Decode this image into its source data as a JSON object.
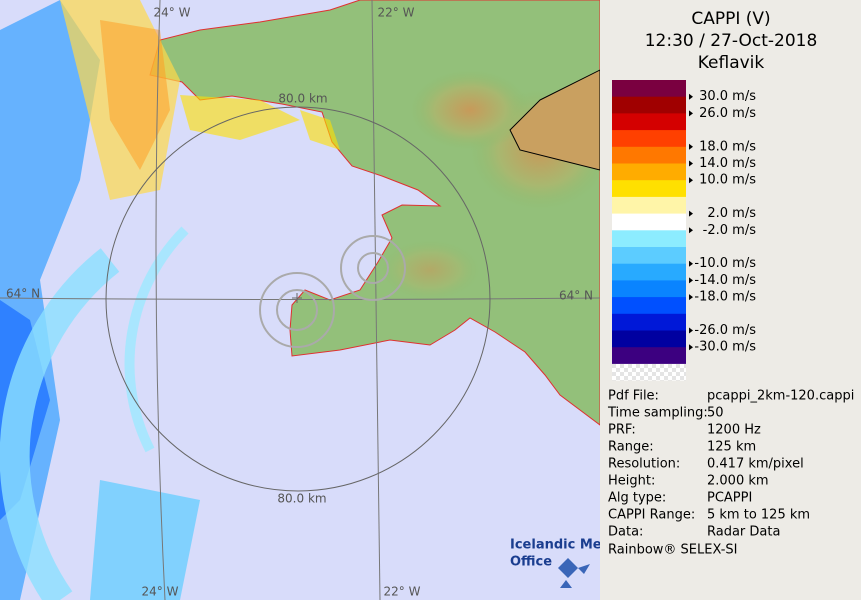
{
  "map": {
    "labels": {
      "lon_top_left": "24° W",
      "lon_top_right": "22° W",
      "range_top": "80.0 km",
      "lat_left": "64° N",
      "lat_right": "64° N",
      "range_bottom": "80.0 km",
      "lon_bottom_left": "24° W",
      "lon_bottom_right": "22° W"
    },
    "logo": [
      "Icelandic Met",
      "Office"
    ]
  },
  "panel": {
    "title": "CAPPI (V)",
    "time": "12:30 / 27-Oct-2018",
    "station": "Keflavik",
    "legend": {
      "colors": [
        "#7a0040",
        "#a00000",
        "#d40000",
        "#ff4000",
        "#ff7800",
        "#ffac00",
        "#ffe000",
        "#fff5a8",
        "#ffffff",
        "#8cecff",
        "#5cccff",
        "#28aaff",
        "#0a84ff",
        "#0050ff",
        "#0018d8",
        "#0000a0",
        "#3c0080"
      ],
      "labels": [
        {
          "text": "30.0 m/s",
          "edge": 1
        },
        {
          "text": "26.0 m/s",
          "edge": 2
        },
        {
          "text": "18.0 m/s",
          "edge": 4
        },
        {
          "text": "14.0 m/s",
          "edge": 5
        },
        {
          "text": "10.0 m/s",
          "edge": 6
        },
        {
          "text": "2.0 m/s",
          "edge": 8
        },
        {
          "text": "-2.0 m/s",
          "edge": 9
        },
        {
          "text": "-10.0 m/s",
          "edge": 11
        },
        {
          "text": "-14.0 m/s",
          "edge": 12
        },
        {
          "text": "-18.0 m/s",
          "edge": 13
        },
        {
          "text": "-26.0 m/s",
          "edge": 15
        },
        {
          "text": "-30.0 m/s",
          "edge": 16
        }
      ]
    },
    "info": [
      [
        "Pdf File:",
        "pcappi_2km-120.cappi"
      ],
      [
        "Time sampling:",
        "50"
      ],
      [
        "PRF:",
        "1200 Hz"
      ],
      [
        "Range:",
        "125 km"
      ],
      [
        "Resolution:",
        "0.417 km/pixel"
      ],
      [
        "Height:",
        "2.000 km"
      ],
      [
        "Alg type:",
        "PCAPPI"
      ],
      [
        "CAPPI Range:",
        "5 km to 125 km"
      ],
      [
        "Data:",
        "Radar Data"
      ]
    ],
    "footer": "Rainbow® SELEX-SI"
  }
}
